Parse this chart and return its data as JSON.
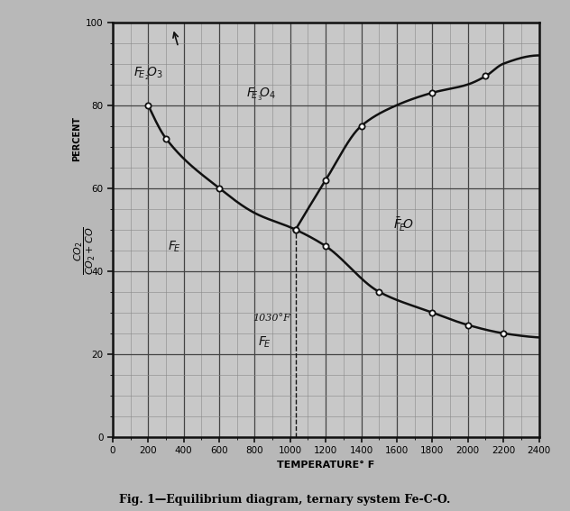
{
  "title": "Fig. 1—Equilibrium diagram, ternary system Fe-C-O.",
  "xlabel": "TEMPERATURE° F",
  "xlim": [
    0,
    2400
  ],
  "ylim": [
    0,
    100
  ],
  "xticks": [
    0,
    200,
    400,
    600,
    800,
    1000,
    1200,
    1400,
    1600,
    1800,
    2000,
    2200,
    2400
  ],
  "yticks": [
    0,
    20,
    40,
    60,
    80,
    100
  ],
  "line_color": "#111111",
  "grid_major_color": "#444444",
  "grid_minor_color": "#888888",
  "bg_color": "#c8c8c8",
  "fig_bg": "#b8b8b8",
  "dashed_x": 1030,
  "curve_A_x": [
    200,
    300,
    600,
    800,
    1030,
    1200,
    1500,
    1800,
    2000,
    2200,
    2400
  ],
  "curve_A_y": [
    80,
    72,
    60,
    54,
    50,
    46,
    35,
    30,
    27,
    25,
    24
  ],
  "curve_B_x": [
    1030,
    1100,
    1200,
    1400,
    1600,
    1800,
    2000,
    2100,
    2200,
    2400
  ],
  "curve_B_y": [
    50,
    55,
    62,
    75,
    80,
    83,
    85,
    87,
    90,
    92
  ],
  "markers_A_x": [
    200,
    300,
    600,
    1030,
    1200,
    1500,
    1800,
    2000,
    2200
  ],
  "markers_A_y": [
    80,
    72,
    60,
    50,
    46,
    35,
    30,
    27,
    25
  ],
  "markers_B_x": [
    1030,
    1200,
    1400,
    1800,
    2100
  ],
  "markers_B_y": [
    50,
    62,
    75,
    83,
    87
  ],
  "figsize": [
    6.32,
    5.67
  ],
  "dpi": 100
}
